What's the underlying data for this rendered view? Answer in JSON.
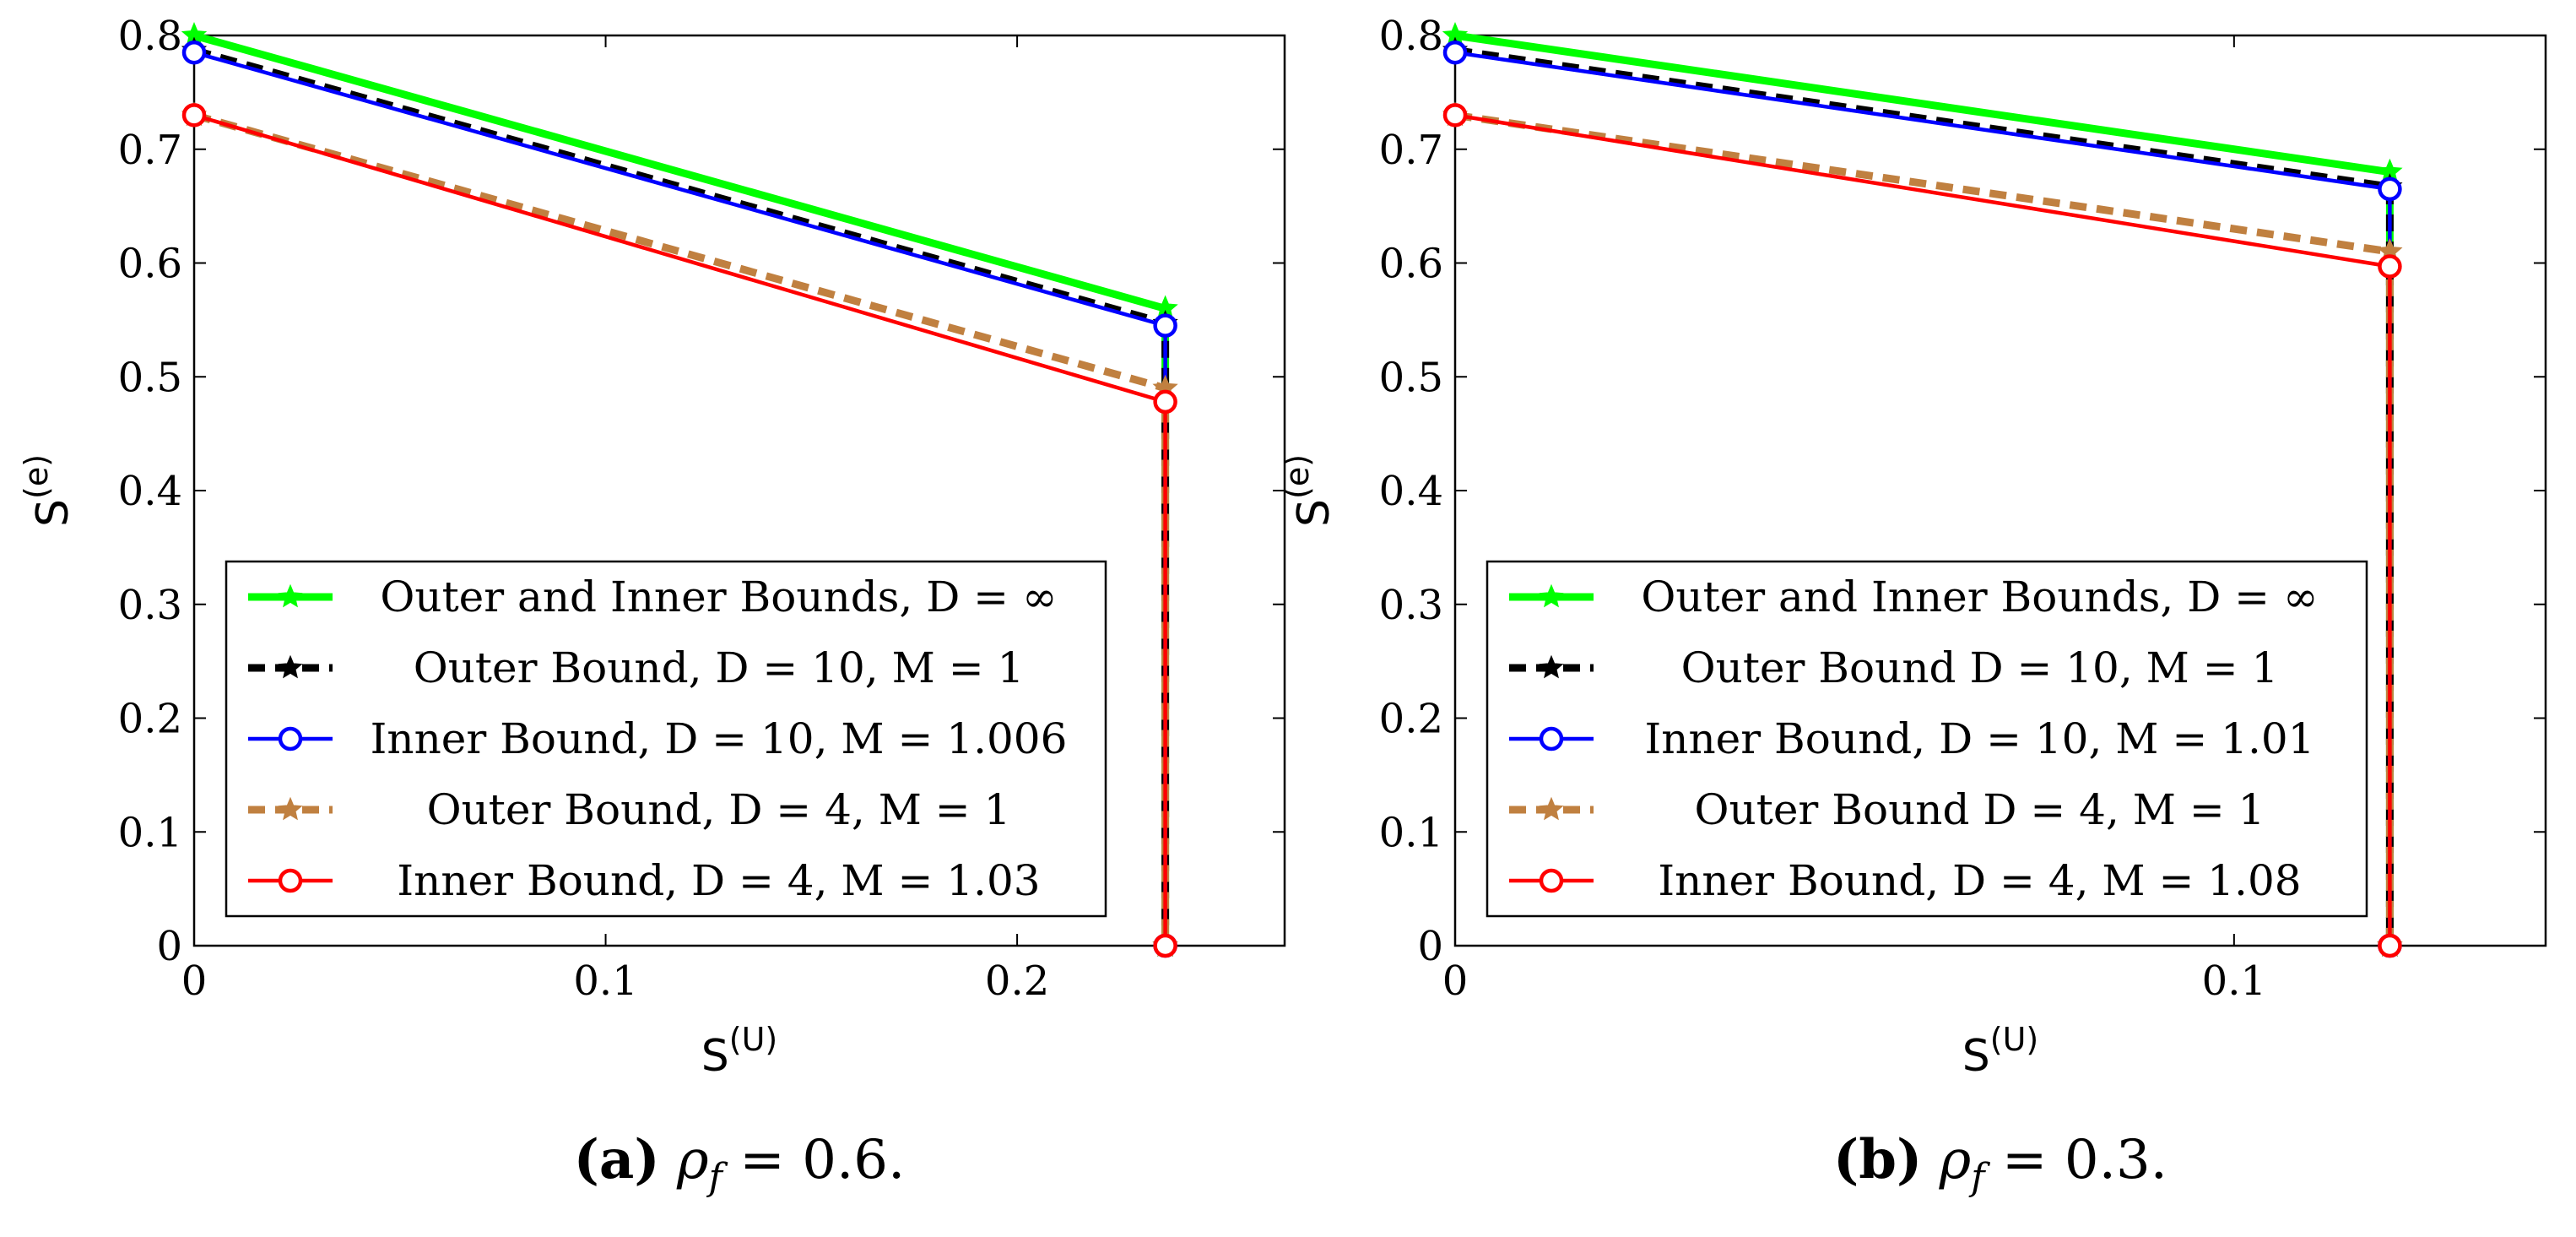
{
  "chart_data": [
    {
      "type": "line",
      "panel_label": "(a)",
      "caption_math": "ρ",
      "caption_sub": "f",
      "caption_rest": " = 0.6.",
      "xlabel_base": "S",
      "xlabel_sup": "(U)",
      "ylabel_base": "S",
      "ylabel_sup": "(e)",
      "xlim": [
        0,
        0.265
      ],
      "ylim": [
        0,
        0.8
      ],
      "xticks": [
        {
          "v": 0,
          "label": "0"
        },
        {
          "v": 0.1,
          "label": "0.1"
        },
        {
          "v": 0.2,
          "label": "0.2"
        }
      ],
      "yticks": [
        {
          "v": 0,
          "label": "0"
        },
        {
          "v": 0.1,
          "label": "0.1"
        },
        {
          "v": 0.2,
          "label": "0.2"
        },
        {
          "v": 0.3,
          "label": "0.3"
        },
        {
          "v": 0.4,
          "label": "0.4"
        },
        {
          "v": 0.5,
          "label": "0.5"
        },
        {
          "v": 0.6,
          "label": "0.6"
        },
        {
          "v": 0.7,
          "label": "0.7"
        },
        {
          "v": 0.8,
          "label": "0.8"
        }
      ],
      "legend_position": "bottom-left",
      "series": [
        {
          "name": "Outer and Inner Bounds, D = ∞",
          "color": "#00ff00",
          "style": "solid-thick",
          "marker": "star",
          "x": [
            0,
            0.236,
            0.236
          ],
          "y": [
            0.8,
            0.56,
            0
          ]
        },
        {
          "name": "Outer Bound, D = 10, M = 1",
          "color": "#000000",
          "style": "dashed-thick",
          "marker": "star",
          "x": [
            0,
            0.236,
            0.236
          ],
          "y": [
            0.787,
            0.547,
            0
          ]
        },
        {
          "name": "Inner Bound, D = 10, M = 1.006",
          "color": "#0000ff",
          "style": "solid",
          "marker": "circle",
          "x": [
            0,
            0.236,
            0.236
          ],
          "y": [
            0.785,
            0.545,
            0
          ]
        },
        {
          "name": "Outer Bound, D = 4, M = 1",
          "color": "#c08040",
          "style": "dashed-thick",
          "marker": "star",
          "x": [
            0,
            0.236,
            0.236
          ],
          "y": [
            0.73,
            0.49,
            0
          ]
        },
        {
          "name": "Inner Bound, D = 4, M = 1.03",
          "color": "#ff0000",
          "style": "solid",
          "marker": "circle",
          "x": [
            0,
            0.236,
            0.236
          ],
          "y": [
            0.73,
            0.478,
            0
          ]
        }
      ]
    },
    {
      "type": "line",
      "panel_label": "(b)",
      "caption_math": "ρ",
      "caption_sub": "f",
      "caption_rest": " = 0.3.",
      "xlabel_base": "S",
      "xlabel_sup": "(U)",
      "ylabel_base": "S",
      "ylabel_sup": "(e)",
      "xlim": [
        0,
        0.14
      ],
      "ylim": [
        0,
        0.8
      ],
      "xticks": [
        {
          "v": 0,
          "label": "0"
        },
        {
          "v": 0.1,
          "label": "0.1"
        }
      ],
      "yticks": [
        {
          "v": 0,
          "label": "0"
        },
        {
          "v": 0.1,
          "label": "0.1"
        },
        {
          "v": 0.2,
          "label": "0.2"
        },
        {
          "v": 0.3,
          "label": "0.3"
        },
        {
          "v": 0.4,
          "label": "0.4"
        },
        {
          "v": 0.5,
          "label": "0.5"
        },
        {
          "v": 0.6,
          "label": "0.6"
        },
        {
          "v": 0.7,
          "label": "0.7"
        },
        {
          "v": 0.8,
          "label": "0.8"
        }
      ],
      "legend_position": "bottom-left",
      "series": [
        {
          "name": "Outer and Inner Bounds, D = ∞",
          "color": "#00ff00",
          "style": "solid-thick",
          "marker": "star",
          "x": [
            0,
            0.12,
            0.12
          ],
          "y": [
            0.8,
            0.68,
            0
          ]
        },
        {
          "name": "Outer Bound D = 10, M = 1",
          "color": "#000000",
          "style": "dashed-thick",
          "marker": "star",
          "x": [
            0,
            0.12,
            0.12
          ],
          "y": [
            0.787,
            0.667,
            0
          ]
        },
        {
          "name": "Inner Bound, D = 10, M = 1.01",
          "color": "#0000ff",
          "style": "solid",
          "marker": "circle",
          "x": [
            0,
            0.12,
            0.12
          ],
          "y": [
            0.785,
            0.665,
            0
          ]
        },
        {
          "name": "Outer Bound D = 4, M = 1",
          "color": "#c08040",
          "style": "dashed-thick",
          "marker": "star",
          "x": [
            0,
            0.12,
            0.12
          ],
          "y": [
            0.73,
            0.61,
            0
          ]
        },
        {
          "name": "Inner Bound, D = 4, M = 1.08",
          "color": "#ff0000",
          "style": "solid",
          "marker": "circle",
          "x": [
            0,
            0.12,
            0.12
          ],
          "y": [
            0.73,
            0.597,
            0
          ]
        }
      ]
    }
  ]
}
